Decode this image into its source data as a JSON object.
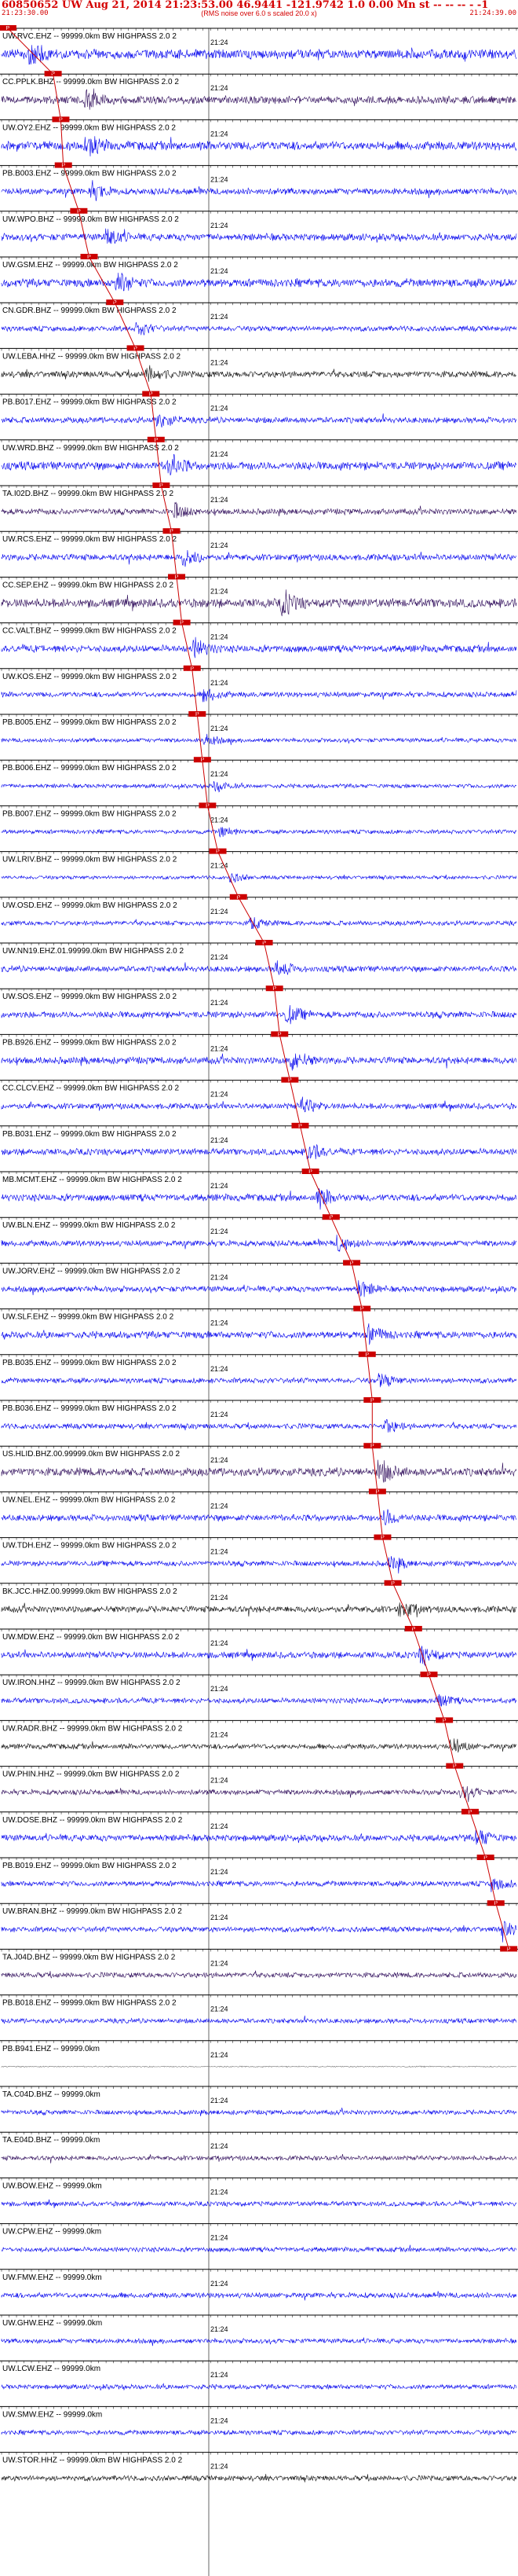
{
  "header": {
    "title": "60850652  UW  Aug 21, 2014 21:23:53.00   46.9441  -121.9742   1.0  0.00  Mn st  -- -- -- -  -1",
    "start_time": "21:23:30.00",
    "end_time": "21:24:39.00",
    "subtitle": "(RMS noise over 6.0 s scaled 20.0 x)"
  },
  "chart_data": {
    "type": "line",
    "title": "60850652  UW  Aug 21, 2014 21:23:53.00   46.9441  -121.9742   1.0  0.00  Mn st  -- -- -- -  -1",
    "x_range": [
      "21:23:30.00",
      "21:24:39.00"
    ],
    "minute_mark": "21:24",
    "tick_interval_s": 1,
    "phase_pick_marker": "P",
    "colors": {
      "header": "#d40000",
      "pick": "#cc0000",
      "blue": "#0000ee",
      "purple": "#2e0b5a",
      "dark": "#111111",
      "gray": "#777777"
    },
    "traces": [
      {
        "label": "UW.RVC.EHZ -- 99999.0km BW  HIGHPASS  2.0  2",
        "color": "blue",
        "amplitude": 0.8,
        "pick": 0.012,
        "burst": 0.06
      },
      {
        "label": "CC.PPLK.BHZ -- 99999.0km BW  HIGHPASS  2.0  2",
        "color": "purple",
        "amplitude": 0.65,
        "pick": 0.1,
        "burst": 0.17
      },
      {
        "label": "UW.OY2.EHZ -- 99999.0km BW  HIGHPASS  2.0  2",
        "color": "blue",
        "amplitude": 0.75,
        "pick": 0.115,
        "burst": 0.17
      },
      {
        "label": "PB.B003.EHZ -- 99999.0km BW  HIGHPASS  2.0  2",
        "color": "blue",
        "amplitude": 0.55,
        "pick": 0.12,
        "burst": 0.18
      },
      {
        "label": "UW.WPO.BHZ -- 99999.0km BW  HIGHPASS  2.0  2",
        "color": "blue",
        "amplitude": 0.6,
        "pick": 0.15,
        "burst": 0.21
      },
      {
        "label": "UW.GSM.EHZ -- 99999.0km BW  HIGHPASS  2.0  2",
        "color": "blue",
        "amplitude": 0.7,
        "pick": 0.17,
        "burst": 0.23
      },
      {
        "label": "CN.GDR.BHZ -- 99999.0km BW  HIGHPASS  2.0  2",
        "color": "blue",
        "amplitude": 0.45,
        "pick": 0.22,
        "burst": 0.27
      },
      {
        "label": "UW.LEBA.HHZ -- 99999.0km BW  HIGHPASS  2.0  2",
        "color": "dark",
        "amplitude": 0.55,
        "pick": 0.26,
        "burst": 0.29
      },
      {
        "label": "PB.B017.EHZ -- 99999.0km BW  HIGHPASS  2.0  2",
        "color": "blue",
        "amplitude": 0.5,
        "pick": 0.29,
        "burst": 0.31
      },
      {
        "label": "UW.WRD.BHZ -- 99999.0km BW  HIGHPASS  2.0  2",
        "color": "blue",
        "amplitude": 0.7,
        "pick": 0.3,
        "burst": 0.33
      },
      {
        "label": "TA.I02D.BHZ -- 99999.0km BW  HIGHPASS  2.0  2",
        "color": "purple",
        "amplitude": 0.5,
        "pick": 0.31,
        "burst": 0.34
      },
      {
        "label": "UW.RCS.EHZ -- 99999.0km BW  HIGHPASS  2.0  2",
        "color": "blue",
        "amplitude": 0.55,
        "pick": 0.33,
        "burst": 0.36
      },
      {
        "label": "CC.SEP.EHZ -- 99999.0km BW  HIGHPASS  2.0  2",
        "color": "purple",
        "amplitude": 0.75,
        "pick": 0.34,
        "burst": 0.55
      },
      {
        "label": "CC.VALT.BHZ -- 99999.0km BW  HIGHPASS  2.0  2",
        "color": "blue",
        "amplitude": 0.6,
        "pick": 0.35,
        "burst": 0.38
      },
      {
        "label": "UW.KOS.EHZ -- 99999.0km BW  HIGHPASS  2.0  2",
        "color": "blue",
        "amplitude": 0.45,
        "pick": 0.37,
        "burst": 0.4
      },
      {
        "label": "PB.B005.EHZ -- 99999.0km BW  HIGHPASS  2.0  2",
        "color": "blue",
        "amplitude": 0.35,
        "pick": 0.38,
        "burst": 0.4
      },
      {
        "label": "PB.B006.EHZ -- 99999.0km BW  HIGHPASS  2.0  2",
        "color": "blue",
        "amplitude": 0.35,
        "pick": 0.39,
        "burst": 0.42
      },
      {
        "label": "PB.B007.EHZ -- 99999.0km BW  HIGHPASS  2.0  2",
        "color": "blue",
        "amplitude": 0.35,
        "pick": 0.4,
        "burst": 0.43
      },
      {
        "label": "UW.LRIV.BHZ -- 99999.0km BW  HIGHPASS  2.0  2",
        "color": "blue",
        "amplitude": 0.3,
        "pick": 0.42,
        "burst": 0.45
      },
      {
        "label": "UW.OSD.EHZ -- 99999.0km BW  HIGHPASS  2.0  2",
        "color": "blue",
        "amplitude": 0.4,
        "pick": 0.46,
        "burst": 0.49
      },
      {
        "label": "UW.NN19.EHZ.01.99999.0km BW  HIGHPASS  2.0  2",
        "color": "blue",
        "amplitude": 0.5,
        "pick": 0.51,
        "burst": 0.54
      },
      {
        "label": "UW.SOS.EHZ -- 99999.0km BW  HIGHPASS  2.0  2",
        "color": "blue",
        "amplitude": 0.55,
        "pick": 0.53,
        "burst": 0.56
      },
      {
        "label": "PB.B926.EHZ -- 99999.0km BW  HIGHPASS  2.0  2",
        "color": "blue",
        "amplitude": 0.6,
        "pick": 0.54,
        "burst": 0.57
      },
      {
        "label": "CC.CLCV.EHZ -- 99999.0km BW  HIGHPASS  2.0  2",
        "color": "blue",
        "amplitude": 0.5,
        "pick": 0.56,
        "burst": 0.59
      },
      {
        "label": "PB.B031.EHZ -- 99999.0km BW  HIGHPASS  2.0  2",
        "color": "blue",
        "amplitude": 0.55,
        "pick": 0.58,
        "burst": 0.6
      },
      {
        "label": "MB.MCMT.EHZ -- 99999.0km BW  HIGHPASS  2.0  2",
        "color": "blue",
        "amplitude": 0.6,
        "pick": 0.6,
        "burst": 0.62
      },
      {
        "label": "UW.BLN.EHZ -- 99999.0km BW  HIGHPASS  2.0  2",
        "color": "blue",
        "amplitude": 0.5,
        "pick": 0.64,
        "burst": 0.66
      },
      {
        "label": "UW.JORV.EHZ -- 99999.0km BW  HIGHPASS  2.0  2",
        "color": "blue",
        "amplitude": 0.5,
        "pick": 0.68,
        "burst": 0.7
      },
      {
        "label": "UW.SLF.EHZ -- 99999.0km BW  HIGHPASS  2.0  2",
        "color": "blue",
        "amplitude": 0.6,
        "pick": 0.7,
        "burst": 0.72
      },
      {
        "label": "PB.B035.EHZ -- 99999.0km BW  HIGHPASS  2.0  2",
        "color": "blue",
        "amplitude": 0.45,
        "pick": 0.71,
        "burst": 0.74
      },
      {
        "label": "PB.B036.EHZ -- 99999.0km BW  HIGHPASS  2.0  2",
        "color": "blue",
        "amplitude": 0.45,
        "pick": 0.72,
        "burst": 0.75
      },
      {
        "label": "US.HLID.BHZ.00.99999.0km BW  HIGHPASS  2.0  2",
        "color": "purple",
        "amplitude": 0.7,
        "pick": 0.72,
        "burst": 0.74
      },
      {
        "label": "UW.NEL.EHZ -- 99999.0km BW  HIGHPASS  2.0  2",
        "color": "blue",
        "amplitude": 0.55,
        "pick": 0.73,
        "burst": 0.75
      },
      {
        "label": "UW.TDH.EHZ -- 99999.0km BW  HIGHPASS  2.0  2",
        "color": "blue",
        "amplitude": 0.45,
        "pick": 0.74,
        "burst": 0.76
      },
      {
        "label": "BK.JCC.HHZ.00.99999.0km BW  HIGHPASS  2.0  2",
        "color": "dark",
        "amplitude": 0.55,
        "pick": 0.76,
        "burst": 0.78
      },
      {
        "label": "UW.MDW.EHZ -- 99999.0km BW  HIGHPASS  2.0  2",
        "color": "blue",
        "amplitude": 0.55,
        "pick": 0.8,
        "burst": 0.82
      },
      {
        "label": "UW.IRON.HHZ -- 99999.0km BW  HIGHPASS  2.0  2",
        "color": "blue",
        "amplitude": 0.45,
        "pick": 0.83,
        "burst": 0.85
      },
      {
        "label": "UW.RADR.BHZ -- 99999.0km BW  HIGHPASS  2.0  2",
        "color": "dark",
        "amplitude": 0.45,
        "pick": 0.86,
        "burst": 0.88
      },
      {
        "label": "UW.PHIN.HHZ -- 99999.0km BW  HIGHPASS  2.0  2",
        "color": "purple",
        "amplitude": 0.45,
        "pick": 0.88,
        "burst": 0.9
      },
      {
        "label": "UW.DOSE.BHZ -- 99999.0km BW  HIGHPASS  2.0  2",
        "color": "blue",
        "amplitude": 0.55,
        "pick": 0.91,
        "burst": 0.93
      },
      {
        "label": "PB.B019.EHZ -- 99999.0km BW  HIGHPASS  2.0  2",
        "color": "blue",
        "amplitude": 0.45,
        "pick": 0.94,
        "burst": 0.96
      },
      {
        "label": "UW.BRAN.BHZ -- 99999.0km BW  HIGHPASS  2.0  2",
        "color": "blue",
        "amplitude": 0.45,
        "pick": 0.96,
        "burst": 0.98
      },
      {
        "label": "TA.J04D.BHZ -- 99999.0km BW  HIGHPASS  2.0  2",
        "color": "purple",
        "amplitude": 0.45,
        "pick": 0.985,
        "burst": -1
      },
      {
        "label": "PB.B018.EHZ -- 99999.0km BW  HIGHPASS  2.0  2",
        "color": "blue",
        "amplitude": 0.4,
        "pick": -1,
        "burst": -1
      },
      {
        "label": "PB.B941.EHZ -- 99999.0km",
        "color": "gray",
        "amplitude": 0.1,
        "pick": -1,
        "burst": -1
      },
      {
        "label": "TA.C04D.BHZ -- 99999.0km",
        "color": "blue",
        "amplitude": 0.4,
        "pick": -1,
        "burst": -1
      },
      {
        "label": "TA.E04D.BHZ -- 99999.0km",
        "color": "purple",
        "amplitude": 0.4,
        "pick": -1,
        "burst": -1
      },
      {
        "label": "UW.BOW.EHZ -- 99999.0km",
        "color": "blue",
        "amplitude": 0.4,
        "pick": -1,
        "burst": -1
      },
      {
        "label": "UW.CPW.EHZ -- 99999.0km",
        "color": "blue",
        "amplitude": 0.4,
        "pick": -1,
        "burst": -1
      },
      {
        "label": "UW.FMW.EHZ -- 99999.0km",
        "color": "blue",
        "amplitude": 0.45,
        "pick": -1,
        "burst": -1
      },
      {
        "label": "UW.GHW.EHZ -- 99999.0km",
        "color": "blue",
        "amplitude": 0.4,
        "pick": -1,
        "burst": -1
      },
      {
        "label": "UW.LCW.EHZ -- 99999.0km",
        "color": "blue",
        "amplitude": 0.4,
        "pick": -1,
        "burst": -1
      },
      {
        "label": "UW.SMW.EHZ -- 99999.0km",
        "color": "blue",
        "amplitude": 0.4,
        "pick": -1,
        "burst": -1
      },
      {
        "label": "UW.STOR.HHZ -- 99999.0km BW  HIGHPASS  2.0  2",
        "color": "dark",
        "amplitude": 0.45,
        "pick": -1,
        "burst": -1
      }
    ]
  }
}
